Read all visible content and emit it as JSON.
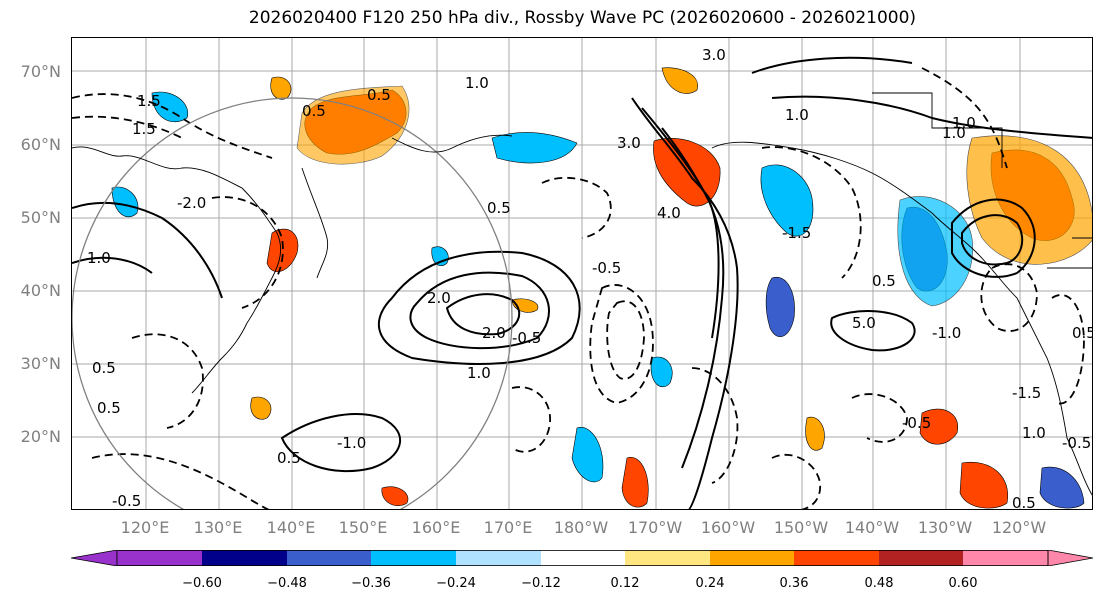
{
  "title": "2026020400 F120 250 hPa div., Rossby Wave PC (2026020600 - 2026021000)",
  "lat_labels": [
    "70°N",
    "60°N",
    "50°N",
    "40°N",
    "30°N",
    "20°N"
  ],
  "lon_labels": [
    "120°E",
    "130°E",
    "140°E",
    "150°E",
    "160°E",
    "170°E",
    "180°W",
    "170°W",
    "160°W",
    "150°W",
    "140°W",
    "130°W",
    "120°W"
  ],
  "colorbar": {
    "ticks": [
      "−0.60",
      "−0.48",
      "−0.36",
      "−0.24",
      "−0.12",
      "0.12",
      "0.24",
      "0.36",
      "0.48",
      "0.60"
    ],
    "colors": [
      "#9932cc",
      "#00008b",
      "#3a5fcd",
      "#00bfff",
      "#b0e2ff",
      "#ffffff",
      "#ffe680",
      "#ffa500",
      "#ff4500",
      "#b22222",
      "#ff88aa"
    ]
  },
  "contour_labels": [
    "1.0",
    "3.0",
    "1.0",
    "0.5",
    "1.5",
    "0.5",
    "1.5",
    "-2.0",
    "1.0",
    "3.0",
    "1.0",
    "4.0",
    "1.0",
    "2.0",
    "2.0",
    "-0.5",
    "0.5",
    "-1.0",
    "-0.5",
    "0.5",
    "-1.5",
    "-0.5",
    "5.0",
    "-1.0",
    "-1.5",
    "1.0",
    "0.5",
    "0.5",
    "0.5",
    "-0.5",
    "1.0",
    "-0.5",
    "0.5",
    "0.5"
  ],
  "colors": {
    "shade_pos": "#ffa500",
    "shade_pos_strong": "#ff4500",
    "shade_neg": "#00bfff",
    "shade_neg_strong": "#3a5fcd",
    "circle": "#808080"
  }
}
